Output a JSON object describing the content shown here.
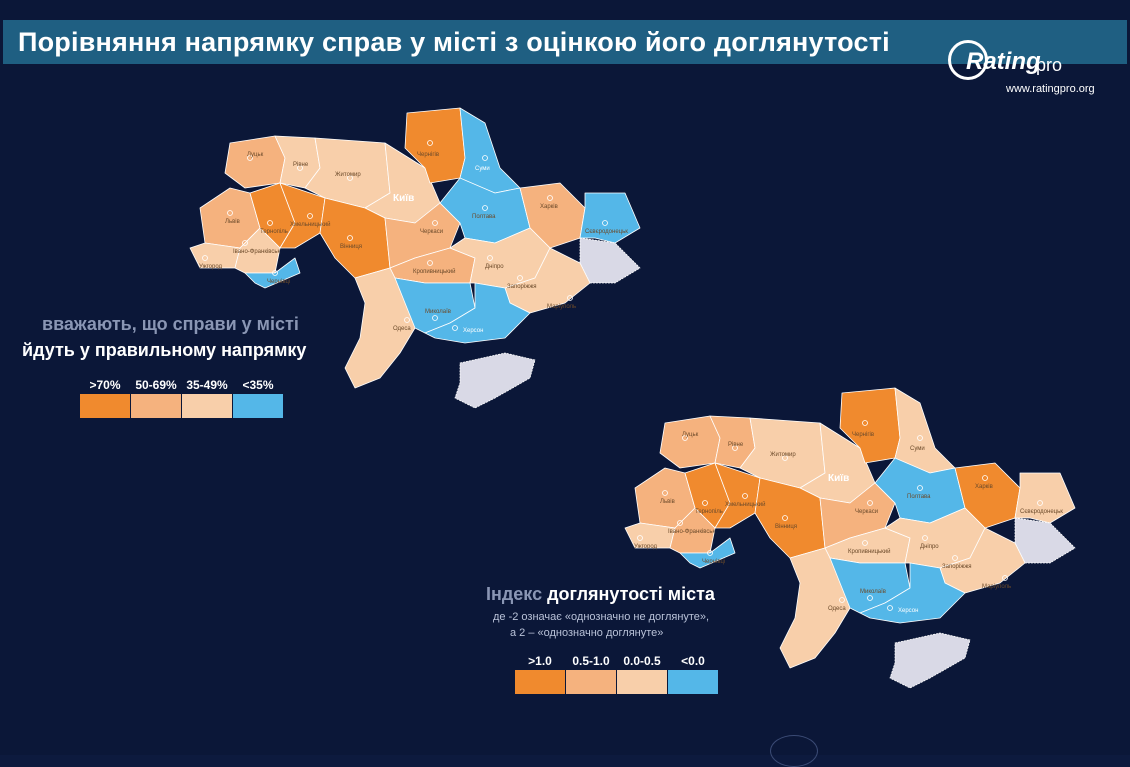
{
  "title": "Порівняння напрямку справ у місті з оцінкою його доглянутості",
  "logo": {
    "word": "Rating",
    "suffix": "pro",
    "url": "www.ratingpro.org"
  },
  "colors": {
    "background": "#0b1738",
    "title_bar": "#1f5f82",
    "dark_orange": "#f08a2e",
    "mid_orange": "#f5b27e",
    "light_orange": "#f8cfaa",
    "blue": "#54b7e8"
  },
  "map1": {
    "caption_line1": "вважають, що справи у місті",
    "caption_line2": "йдуть у правильному напрямку",
    "legend": [
      {
        "label": ">70%",
        "color": "#f08a2e"
      },
      {
        "label": "50-69%",
        "color": "#f5b27e"
      },
      {
        "label": "35-49%",
        "color": "#f8cfaa"
      },
      {
        "label": "<35%",
        "color": "#54b7e8"
      }
    ],
    "cities": {
      "lutsk": "Луцьк",
      "rivne": "Рівне",
      "zhytomyr": "Житомир",
      "chernihiv": "Чернігів",
      "sumy": "Суми",
      "kyiv": "Київ",
      "lviv": "Львів",
      "ternopil": "Тернопіль",
      "khmelnytskyi": "Хмельницький",
      "vinnytsia": "Вінниця",
      "poltava": "Полтава",
      "kharkiv": "Харків",
      "sievierodonetsk": "Сєвєродонецьк",
      "cherkasy": "Черкаси",
      "ivano_frankivsk": "Івано-Франківськ",
      "uzhhorod": "Ужгород",
      "chernivtsi": "Чернівці",
      "kropyvnytskyi": "Кропивницький",
      "dnipro": "Дніпро",
      "zaporizhzhia": "Запоріжжя",
      "mariupol": "Маріуполь",
      "mykolaiv": "Миколаїв",
      "kherson": "Херсон",
      "odesa": "Одеса"
    }
  },
  "map2": {
    "caption_muted": "Індекс",
    "caption_main": "доглянутості міста",
    "note_line1": "де -2 означає «однозначно не доглянуте»,",
    "note_line2": "а 2 – «однозначно доглянуте»",
    "legend": [
      {
        "label": ">1.0",
        "color": "#f08a2e"
      },
      {
        "label": "0.5-1.0",
        "color": "#f5b27e"
      },
      {
        "label": "0.0-0.5",
        "color": "#f8cfaa"
      },
      {
        "label": "<0.0",
        "color": "#54b7e8"
      }
    ],
    "cities": {
      "lutsk": "Луцьк",
      "rivne": "Рівне",
      "zhytomyr": "Житомир",
      "chernihiv": "Чернігів",
      "sumy": "Суми",
      "kyiv": "Київ",
      "lviv": "Львів",
      "ternopil": "Тернопіль",
      "khmelnytskyi": "Хмельницький",
      "vinnytsia": "Вінниця",
      "poltava": "Полтава",
      "kharkiv": "Харків",
      "sievierodonetsk": "Сєвєродонецьк",
      "cherkasy": "Черкаси",
      "ivano_frankivsk": "Івано-Франківськ",
      "uzhhorod": "Ужгород",
      "chernivtsi": "Чернівці",
      "kropyvnytskyi": "Кропивницький",
      "dnipro": "Дніпро",
      "zaporizhzhia": "Запоріжжя",
      "mariupol": "Маріуполь",
      "mykolaiv": "Миколаїв",
      "kherson": "Херсон",
      "odesa": "Одеса"
    }
  }
}
